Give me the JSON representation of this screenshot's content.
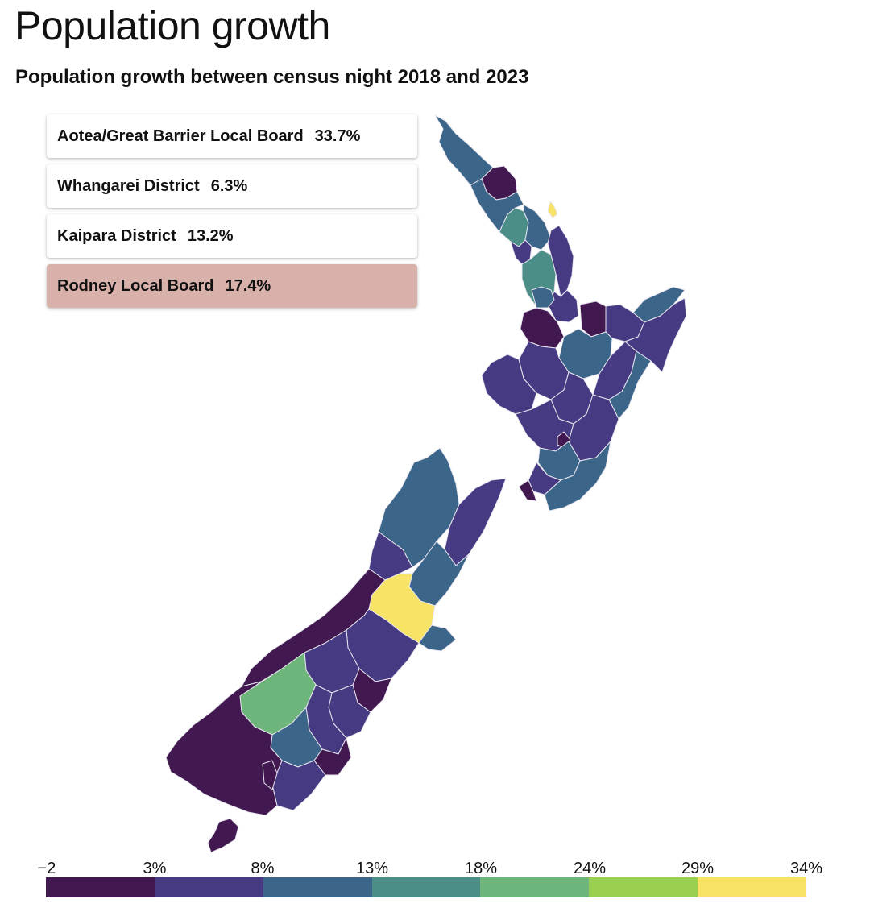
{
  "title": "Population growth",
  "subtitle": "Population growth between census night 2018 and 2023",
  "cards": [
    {
      "name": "Aotea/Great Barrier Local Board",
      "value": "33.7%",
      "active": false
    },
    {
      "name": "Whangarei District",
      "value": "6.3%",
      "active": false
    },
    {
      "name": "Kaipara District",
      "value": "13.2%",
      "active": false
    },
    {
      "name": "Rodney Local Board",
      "value": "17.4%",
      "active": true
    }
  ],
  "legend": {
    "ticks": [
      "−2",
      "3%",
      "8%",
      "13%",
      "18%",
      "24%",
      "29%",
      "34%"
    ],
    "bins": [
      "#41184f",
      "#463b83",
      "#3c658a",
      "#4a8e87",
      "#6db57b",
      "#9ad04f",
      "#f7e466"
    ]
  },
  "map": {
    "region_colors": {
      "dark_purple": "#41184f",
      "indigo": "#463b83",
      "steel_blue": "#3c658a",
      "teal": "#4a8e87",
      "green": "#6db57b",
      "yellow": "#f7e466"
    }
  }
}
